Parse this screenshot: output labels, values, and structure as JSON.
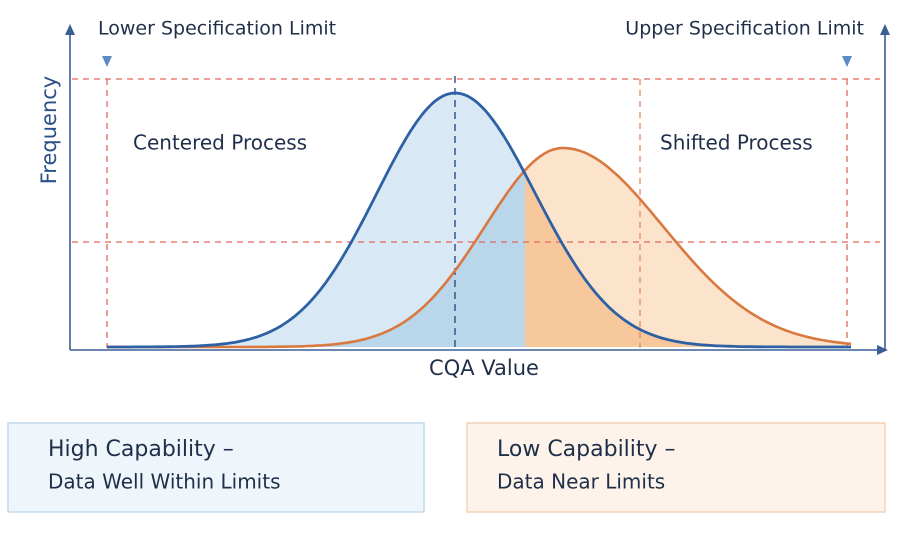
{
  "labels": {
    "lower_limit": "Lower Specification Limit",
    "upper_limit": "Upper Specification Limit",
    "y_axis": "Frequency",
    "x_axis": "CQA Value",
    "centered": "Centered Process",
    "shifted": "Shifted Process"
  },
  "boxes": [
    {
      "title": "High Capability –",
      "subtitle": "Data Well Within Limits"
    },
    {
      "title": "Low Capability –",
      "subtitle": "Data Near Limits"
    }
  ]
}
